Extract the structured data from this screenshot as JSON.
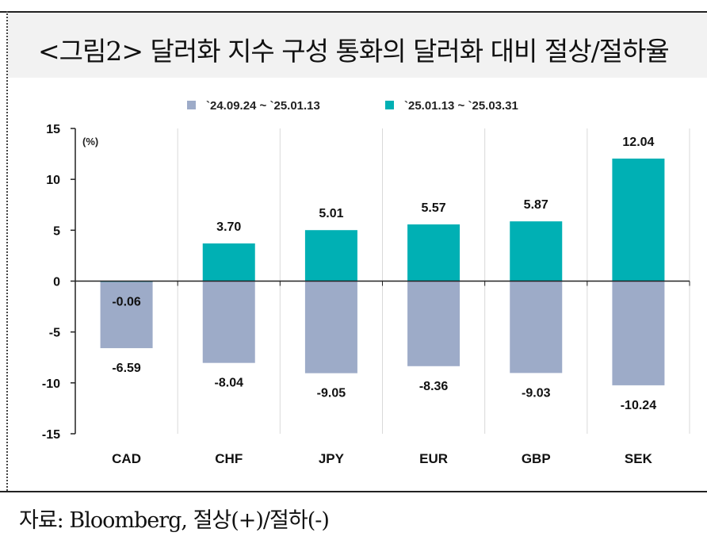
{
  "title": "<그림2> 달러화 지수 구성 통화의 달러화 대비 절상/절하율",
  "source": "자료: Bloomberg, 절상(+)/절하(-)",
  "colors": {
    "series1": "#9dabc8",
    "series2": "#00b0b4"
  },
  "chart_data": {
    "type": "bar",
    "unit_label": "(%)",
    "categories": [
      "CAD",
      "CHF",
      "JPY",
      "EUR",
      "GBP",
      "SEK"
    ],
    "series": [
      {
        "name": "`24.09.24 ~ `25.01.13",
        "values": [
          -6.59,
          -8.04,
          -9.05,
          -8.36,
          -9.03,
          -10.24
        ]
      },
      {
        "name": "`25.01.13 ~ `25.03.31",
        "values": [
          -0.06,
          3.7,
          5.01,
          5.57,
          5.87,
          12.04
        ]
      }
    ],
    "value_labels": [
      [
        "-6.59",
        "-8.04",
        "-9.05",
        "-8.36",
        "-9.03",
        "-10.24"
      ],
      [
        "-0.06",
        "3.70",
        "5.01",
        "5.57",
        "5.87",
        "12.04"
      ]
    ],
    "ylim": [
      -15,
      15
    ],
    "yticks": [
      15,
      10,
      5,
      0,
      -5,
      -10,
      -15
    ],
    "grid": "vertical category separators",
    "legend_position": "top"
  }
}
